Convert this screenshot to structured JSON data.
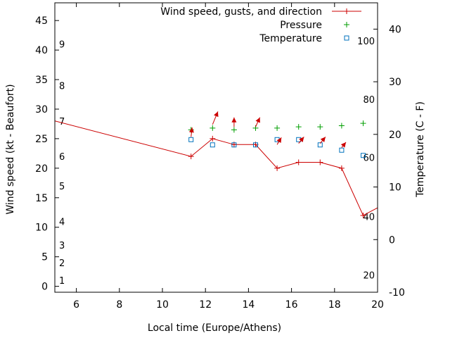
{
  "chart_data": {
    "type": "line",
    "xlabel": "Local time (Europe/Athens)",
    "ylabel": "Wind speed (kt - Beaufort)",
    "y2label": "Temperature (C - F)",
    "xlim": [
      5,
      20
    ],
    "ylim": [
      -1,
      48
    ],
    "y2lim": [
      -10,
      45
    ],
    "x_ticks": [
      "6",
      "8",
      "10",
      "12",
      "14",
      "16",
      "18",
      "20"
    ],
    "y_ticks": [
      "0",
      "5",
      "10",
      "15",
      "20",
      "25",
      "30",
      "35",
      "40",
      "45"
    ],
    "y2_ticks": [
      "-10",
      "0",
      "10",
      "20",
      "30",
      "40"
    ],
    "grid": false,
    "legend_position": "top-right",
    "legend": [
      {
        "label": "Wind speed, gusts, and direction",
        "color": "#cc0000",
        "symbol": "plus-line"
      },
      {
        "label": "Pressure",
        "color": "#009e00",
        "symbol": "plus"
      },
      {
        "label": "Temperature",
        "color": "#0072bd",
        "symbol": "square"
      }
    ],
    "beaufort_labels": [
      {
        "label": "1",
        "y": 1
      },
      {
        "label": "2",
        "y": 4
      },
      {
        "label": "3",
        "y": 7
      },
      {
        "label": "4",
        "y": 11
      },
      {
        "label": "5",
        "y": 17
      },
      {
        "label": "6",
        "y": 22
      },
      {
        "label": "7",
        "y": 28
      },
      {
        "label": "8",
        "y": 34
      },
      {
        "label": "9",
        "y": 41
      }
    ],
    "fahrenheit_labels": [
      {
        "label": "20",
        "y2": -6.7
      },
      {
        "label": "40",
        "y2": 4.4
      },
      {
        "label": "60",
        "y2": 15.6
      },
      {
        "label": "80",
        "y2": 26.7
      },
      {
        "label": "100",
        "y2": 37.8
      }
    ],
    "series": [
      {
        "name": "Wind speed, gusts, and direction",
        "color": "#cc0000",
        "x": [
          5.0,
          11.33,
          12.33,
          13.33,
          14.33,
          15.33,
          16.33,
          17.33,
          18.33,
          19.33,
          20.0
        ],
        "y": [
          28,
          22,
          25,
          24,
          24,
          20,
          21,
          21,
          20,
          12,
          13.3
        ],
        "markers_from_index": 1
      },
      {
        "name": "Pressure",
        "color": "#009e00",
        "x": [
          11.33,
          12.33,
          13.33,
          14.33,
          15.33,
          16.33,
          17.33,
          18.33,
          19.33
        ],
        "y": [
          26.5,
          26.8,
          26.5,
          26.8,
          26.8,
          27.0,
          27.0,
          27.2,
          27.6
        ]
      },
      {
        "name": "Temperature",
        "color": "#0072bd",
        "x": [
          11.33,
          12.33,
          13.33,
          14.33,
          15.33,
          16.33,
          17.33,
          18.33,
          19.33
        ],
        "y2": [
          19,
          18,
          18,
          18,
          19,
          19,
          18,
          17,
          16
        ]
      }
    ],
    "wind_direction_arrows": {
      "color": "#cc0000",
      "x": [
        11.33,
        12.33,
        13.33,
        14.33,
        15.33,
        16.33,
        17.33,
        18.33
      ],
      "y": [
        25.3,
        27.4,
        27.0,
        27.0,
        24.0,
        24.2,
        24.2,
        23.5
      ],
      "dx_hours": [
        0.05,
        0.25,
        0.0,
        0.2,
        0.2,
        0.25,
        0.25,
        0.2
      ],
      "dy": [
        1.6,
        2.2,
        1.6,
        1.6,
        1.2,
        1.1,
        1.1,
        0.9
      ]
    }
  }
}
